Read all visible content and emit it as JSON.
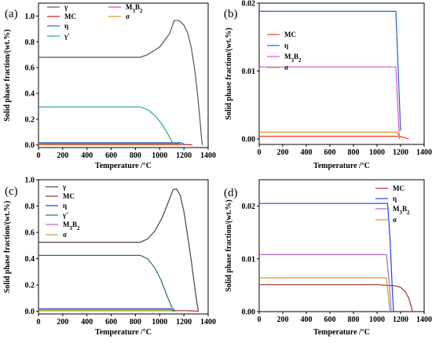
{
  "chart_data": [
    {
      "panel": "(a)",
      "type": "line",
      "xlabel": "Temperature /°C",
      "ylabel": "Solid phase fraction/(wt.%)",
      "xlim": [
        0,
        1400
      ],
      "ylim": [
        -0.02,
        1.1
      ],
      "xticks": [
        "0",
        "200",
        "400",
        "600",
        "800",
        "1000",
        "1200",
        "1400"
      ],
      "yticks": [
        "0.0",
        "0.2",
        "0.4",
        "0.6",
        "0.8",
        "1.0"
      ],
      "legend_position": "top-left",
      "series": [
        {
          "name": "γ",
          "color": "#555555",
          "x": [
            0,
            840,
            900,
            1000,
            1080,
            1120,
            1160,
            1200,
            1230,
            1260,
            1290,
            1310,
            1330,
            1345,
            1352
          ],
          "y": [
            0.68,
            0.68,
            0.7,
            0.76,
            0.86,
            0.965,
            0.965,
            0.93,
            0.87,
            0.76,
            0.58,
            0.42,
            0.22,
            0.06,
            0.0
          ]
        },
        {
          "name": "MC",
          "color": "#cc2222",
          "x": [
            0,
            1150,
            1200,
            1250,
            1270
          ],
          "y": [
            0.005,
            0.005,
            0.004,
            0.002,
            0.0
          ]
        },
        {
          "name": "η",
          "color": "#2266cc",
          "x": [
            0,
            1180,
            1210
          ],
          "y": [
            0.018,
            0.018,
            0.0
          ]
        },
        {
          "name": "γ'",
          "color": "#22aa88",
          "x": [
            0,
            840,
            900,
            960,
            1020,
            1070,
            1105,
            1125
          ],
          "y": [
            0.295,
            0.295,
            0.275,
            0.23,
            0.16,
            0.08,
            0.02,
            0.0
          ]
        },
        {
          "name": "M3B2",
          "color": "#cc44cc",
          "x": [
            0,
            1160,
            1190
          ],
          "y": [
            0.011,
            0.011,
            0.0
          ]
        },
        {
          "name": "σ",
          "color": "#cc9922",
          "x": [
            0,
            1170,
            1190
          ],
          "y": [
            0.001,
            0.001,
            0.0
          ]
        }
      ]
    },
    {
      "panel": "(b)",
      "type": "line",
      "xlabel": "Temperature /°C",
      "ylabel": "Solid phase fraction/(wt.%)",
      "xlim": [
        0,
        1400
      ],
      "ylim": [
        -0.0008,
        0.02
      ],
      "xticks": [
        "0",
        "200",
        "400",
        "600",
        "800",
        "1000",
        "1200",
        "1400"
      ],
      "yticks": [
        "0.00",
        "0.01",
        "0.02"
      ],
      "legend_position": "top-left",
      "series": [
        {
          "name": "MC",
          "color": "#ff3333",
          "x": [
            0,
            1150,
            1200,
            1240,
            1270
          ],
          "y": [
            0.0004,
            0.0004,
            0.00035,
            0.00015,
            0.0
          ]
        },
        {
          "name": "η",
          "color": "#2266cc",
          "x": [
            0,
            1160,
            1200
          ],
          "y": [
            0.0188,
            0.0188,
            0.0012
          ]
        },
        {
          "name": "M3B2",
          "color": "#dd55dd",
          "x": [
            0,
            1160,
            1190
          ],
          "y": [
            0.0106,
            0.0106,
            0.0
          ]
        },
        {
          "name": "σ",
          "color": "#cc9922",
          "x": [
            0,
            1170,
            1195
          ],
          "y": [
            0.001,
            0.001,
            0.0
          ]
        }
      ]
    },
    {
      "panel": "(c)",
      "type": "line",
      "xlabel": "Temperature /°C",
      "ylabel": "Solid phase fraction/(wt.%)",
      "xlim": [
        0,
        1400
      ],
      "ylim": [
        -0.02,
        1.0
      ],
      "xticks": [
        "0",
        "200",
        "400",
        "600",
        "800",
        "1000",
        "1200",
        "1400"
      ],
      "yticks": [
        "0.0",
        "0.2",
        "0.4",
        "0.6",
        "0.8",
        "1.0"
      ],
      "legend_position": "top-left",
      "series": [
        {
          "name": "γ",
          "color": "#444444",
          "x": [
            0,
            840,
            900,
            960,
            1020,
            1080,
            1110,
            1140,
            1170,
            1200,
            1230,
            1260,
            1290,
            1310,
            1320
          ],
          "y": [
            0.525,
            0.525,
            0.55,
            0.61,
            0.71,
            0.85,
            0.925,
            0.93,
            0.88,
            0.76,
            0.58,
            0.39,
            0.18,
            0.05,
            0.0
          ]
        },
        {
          "name": "MC",
          "color": "#993333",
          "x": [
            0,
            1200,
            1260,
            1300,
            1320
          ],
          "y": [
            0.005,
            0.005,
            0.004,
            0.002,
            0.0
          ]
        },
        {
          "name": "η",
          "color": "#2244cc",
          "x": [
            0,
            1090,
            1120
          ],
          "y": [
            0.02,
            0.02,
            0.0
          ]
        },
        {
          "name": "γ'",
          "color": "#227755",
          "x": [
            0,
            840,
            900,
            960,
            1010,
            1060,
            1100,
            1130
          ],
          "y": [
            0.425,
            0.425,
            0.4,
            0.33,
            0.24,
            0.12,
            0.03,
            0.0
          ]
        },
        {
          "name": "M3B2",
          "color": "#bb66cc",
          "x": [
            0,
            1090,
            1115
          ],
          "y": [
            0.011,
            0.011,
            0.0
          ]
        },
        {
          "name": "σ",
          "color": "#aaaa22",
          "x": [
            0,
            1080,
            1110
          ],
          "y": [
            0.006,
            0.006,
            0.0
          ]
        }
      ]
    },
    {
      "panel": "(d)",
      "type": "line",
      "xlabel": "Temperature /°C",
      "ylabel": "Solid phase fraction/(wt.%)",
      "xlim": [
        0,
        1400
      ],
      "ylim": [
        0,
        0.025
      ],
      "xticks": [
        "0",
        "200",
        "400",
        "600",
        "800",
        "1000",
        "1200",
        "1400"
      ],
      "yticks": [
        "0.00",
        "0.01",
        "0.02"
      ],
      "legend_position": "top-right",
      "series": [
        {
          "name": "MC",
          "color": "#993333",
          "x": [
            0,
            1000,
            1150,
            1200,
            1240,
            1270,
            1290,
            1300
          ],
          "y": [
            0.0051,
            0.0051,
            0.0049,
            0.0046,
            0.0038,
            0.0025,
            0.001,
            0.0
          ]
        },
        {
          "name": "η",
          "color": "#2244dd",
          "x": [
            0,
            1090,
            1110,
            1130,
            1140
          ],
          "y": [
            0.0205,
            0.0205,
            0.014,
            0.004,
            0.0
          ]
        },
        {
          "name": "M3B2",
          "color": "#aa66cc",
          "x": [
            0,
            1080,
            1105,
            1120
          ],
          "y": [
            0.0108,
            0.0108,
            0.005,
            0.0
          ]
        },
        {
          "name": "σ",
          "color": "#bbaa22",
          "x": [
            0,
            1080,
            1095,
            1110
          ],
          "y": [
            0.0064,
            0.0064,
            0.003,
            0.0
          ]
        }
      ]
    }
  ]
}
